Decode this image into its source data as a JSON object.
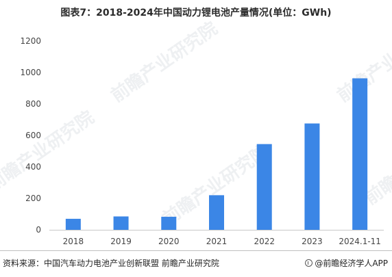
{
  "chart_data": {
    "type": "bar",
    "title": "图表7：2018-2024年中国动力锂电池产量情况(单位：GWh)",
    "categories": [
      "2018",
      "2019",
      "2020",
      "2021",
      "2022",
      "2023",
      "2024.1-11"
    ],
    "values": [
      70,
      85,
      83,
      220,
      545,
      676,
      963
    ],
    "ylim": [
      0,
      1200
    ],
    "yticks": [
      0,
      200,
      400,
      600,
      800,
      1000,
      1200
    ],
    "xlabel": "",
    "ylabel": "",
    "grid": false,
    "bar_color": "#3b86e6"
  },
  "footer": {
    "source": "资料来源：中国汽车动力电池产业创新联盟 前瞻产业研究院",
    "credit": "@前瞻经济学人APP"
  },
  "watermark": {
    "text": "前瞻产业研究院"
  }
}
